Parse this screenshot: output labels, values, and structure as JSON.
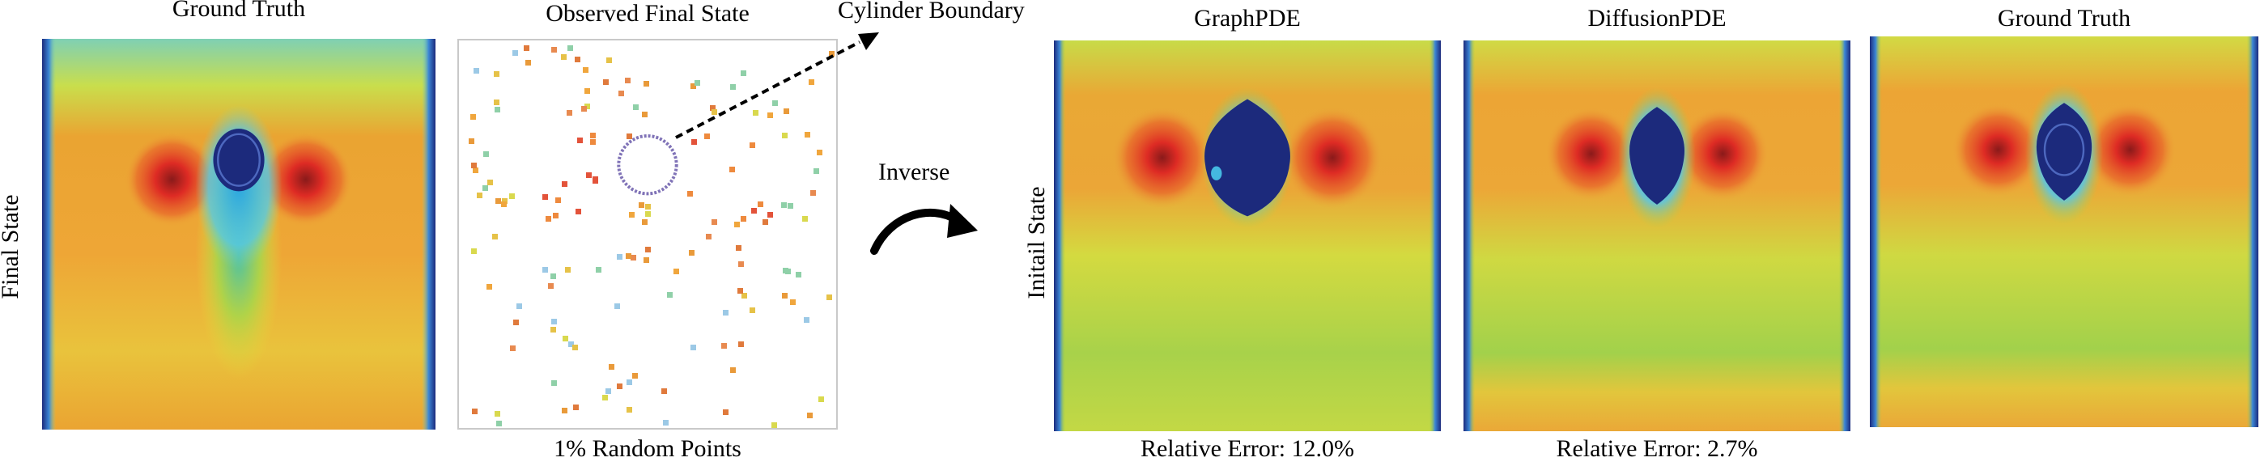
{
  "left_panel": {
    "title": "Ground Truth",
    "row_label": "Final State"
  },
  "observed_panel": {
    "title": "Observed Final State",
    "caption": "1% Random Points",
    "annotation": "Cylinder Boundary"
  },
  "arrow": {
    "label": "Inverse"
  },
  "right_row": {
    "row_label": "Initail State",
    "panels": [
      {
        "title": "GraphPDE",
        "caption": "Relative Error: 12.0%"
      },
      {
        "title": "DiffusionPDE",
        "caption": "Relative Error: 2.7%"
      },
      {
        "title": "Ground Truth",
        "caption": ""
      }
    ]
  },
  "colors": {
    "deep_blue": "#1c2a7c",
    "cyan": "#43c0e8",
    "green": "#9fd24a",
    "yellow": "#e6dd3a",
    "orange": "#f0a030",
    "red": "#de2b24",
    "dark_red": "#8a1a1a"
  }
}
